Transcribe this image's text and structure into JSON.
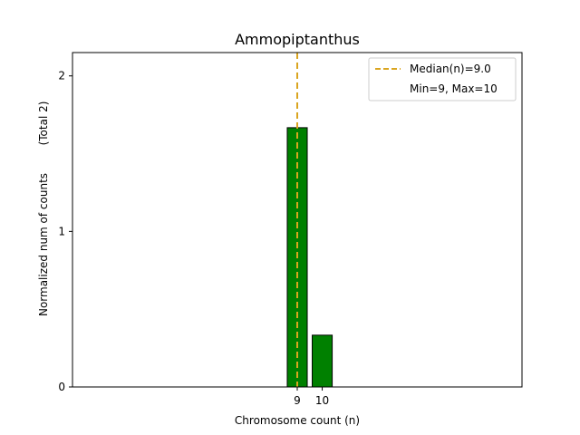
{
  "chart_data": {
    "type": "bar",
    "title": "Ammopiptanthus",
    "xlabel": "Chromosome count (n)",
    "ylabel": "Normalized num of counts",
    "ylabel_note": "(Total 2)",
    "categories": [
      "9",
      "10"
    ],
    "x": [
      9,
      10
    ],
    "values": [
      1.667,
      0.333
    ],
    "ylim": [
      0,
      2.15
    ],
    "xlim": [
      0,
      18
    ],
    "yticks": [
      0,
      1,
      2
    ],
    "ytick_labels": [
      "0",
      "1",
      "2"
    ],
    "xtick_labels": [
      "9",
      "10"
    ],
    "bar_color": "#008000",
    "median": 9.0,
    "median_color": "#DAA520",
    "legend": {
      "placement": "upper right",
      "entries": [
        "Median(n)=9.0",
        "Min=9, Max=10"
      ]
    },
    "grid": false
  }
}
